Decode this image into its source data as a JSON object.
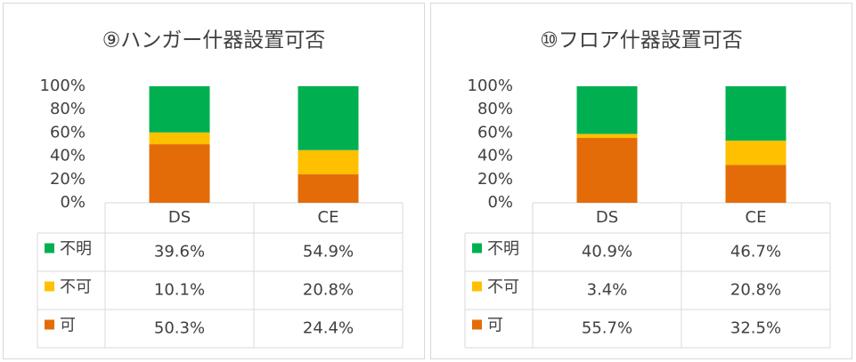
{
  "chart_data": [
    {
      "type": "stacked_bar",
      "title": "⑨ハンガー什器設置可否",
      "categories": [
        "DS",
        "CE"
      ],
      "series": [
        {
          "name": "可",
          "color": "#e36c09",
          "values": [
            50.3,
            24.4
          ],
          "value_labels": [
            "50.3%",
            "24.4%"
          ]
        },
        {
          "name": "不可",
          "color": "#ffc000",
          "values": [
            10.1,
            20.8
          ],
          "value_labels": [
            "10.1%",
            "20.8%"
          ]
        },
        {
          "name": "不明",
          "color": "#00b050",
          "values": [
            39.6,
            54.9
          ],
          "value_labels": [
            "39.6%",
            "54.9%"
          ]
        }
      ],
      "ylim": [
        0,
        100
      ],
      "yticks": [
        {
          "value": 0,
          "label": "0%"
        },
        {
          "value": 20,
          "label": "20%"
        },
        {
          "value": 40,
          "label": "40%"
        },
        {
          "value": 60,
          "label": "60%"
        },
        {
          "value": 80,
          "label": "80%"
        },
        {
          "value": 100,
          "label": "100%"
        }
      ]
    },
    {
      "type": "stacked_bar",
      "title": "⑩フロア什器設置可否",
      "categories": [
        "DS",
        "CE"
      ],
      "series": [
        {
          "name": "可",
          "color": "#e36c09",
          "values": [
            55.7,
            32.5
          ],
          "value_labels": [
            "55.7%",
            "32.5%"
          ]
        },
        {
          "name": "不可",
          "color": "#ffc000",
          "values": [
            3.4,
            20.8
          ],
          "value_labels": [
            "3.4%",
            "20.8%"
          ]
        },
        {
          "name": "不明",
          "color": "#00b050",
          "values": [
            40.9,
            46.7
          ],
          "value_labels": [
            "40.9%",
            "46.7%"
          ]
        }
      ],
      "ylim": [
        0,
        100
      ],
      "yticks": [
        {
          "value": 0,
          "label": "0%"
        },
        {
          "value": 20,
          "label": "20%"
        },
        {
          "value": 40,
          "label": "40%"
        },
        {
          "value": 60,
          "label": "60%"
        },
        {
          "value": 80,
          "label": "80%"
        },
        {
          "value": 100,
          "label": "100%"
        }
      ]
    }
  ]
}
